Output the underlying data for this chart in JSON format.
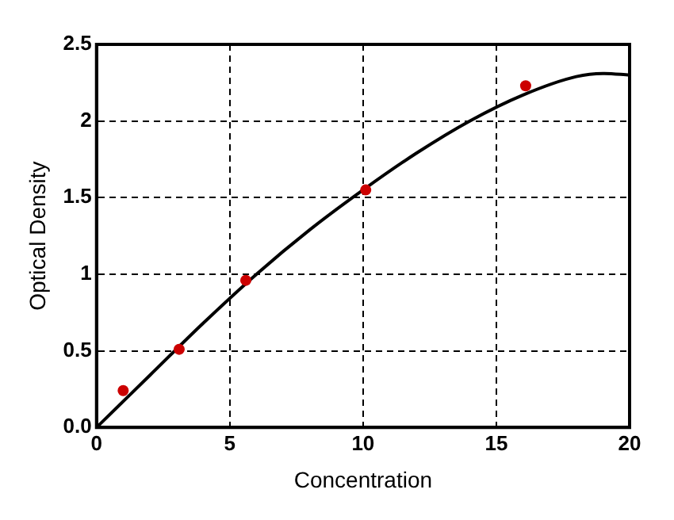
{
  "chart_data": {
    "type": "scatter",
    "xlabel": "Concentration",
    "ylabel": "Optical Density",
    "xlim": [
      0,
      20
    ],
    "xticks": [
      0,
      5,
      10,
      15,
      20
    ],
    "ylim": [
      0,
      2.5
    ],
    "yticks": [
      {
        "value": 0,
        "label": "0.0"
      },
      0.5,
      1,
      1.5,
      2,
      2.5
    ],
    "grid": true,
    "series": [
      {
        "type": "scatter",
        "color": "#cc0000",
        "marker": "circle",
        "x": [
          1.0,
          3.1,
          5.6,
          10.1,
          16.1
        ],
        "values": [
          0.24,
          0.51,
          0.96,
          1.55,
          2.23
        ]
      },
      {
        "type": "line",
        "color": "#000000",
        "marker": "none",
        "line_style": "solid",
        "x": [
          0,
          2,
          4,
          6,
          8,
          10,
          12,
          14,
          16,
          18,
          19,
          20
        ],
        "values": [
          0,
          0.34,
          0.68,
          1.0,
          1.29,
          1.55,
          1.79,
          2.0,
          2.17,
          2.29,
          2.31,
          2.3
        ]
      }
    ]
  }
}
